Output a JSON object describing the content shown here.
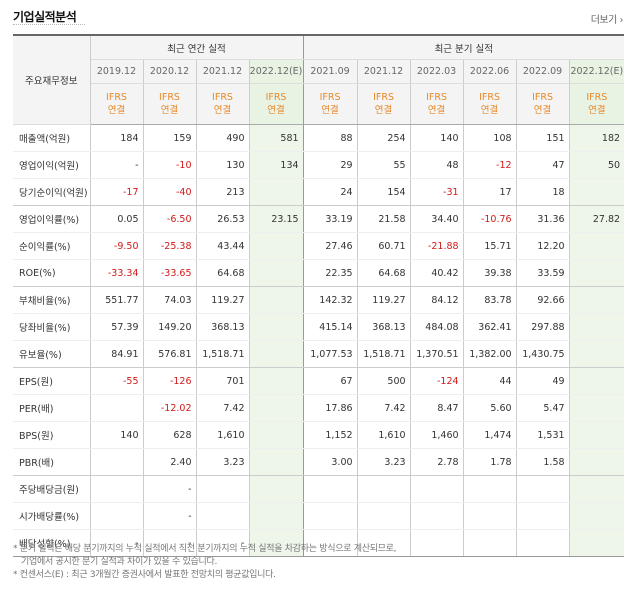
{
  "section_title": "기업실적분석",
  "more_link": "더보기",
  "header": {
    "row_label": "주요재무정보",
    "group_annual": "최근 연간 실적",
    "group_quarter": "최근 분기 실적",
    "annual_periods": [
      "2019.12",
      "2020.12",
      "2021.12",
      "2022.12(E)"
    ],
    "quarter_periods": [
      "2021.09",
      "2021.12",
      "2022.03",
      "2022.06",
      "2022.09",
      "2022.12(E)"
    ],
    "accounting_line1": "IFRS",
    "accounting_line2": "연결"
  },
  "rows": [
    {
      "label": "매출액(억원)",
      "annual": [
        "184",
        "159",
        "490",
        "581"
      ],
      "quarter": [
        "88",
        "254",
        "140",
        "108",
        "151",
        "182"
      ]
    },
    {
      "label": "영업이익(억원)",
      "annual": [
        "-",
        "-10",
        "130",
        "134"
      ],
      "quarter": [
        "29",
        "55",
        "48",
        "-12",
        "47",
        "50"
      ]
    },
    {
      "label": "당기순이익(억원)",
      "annual": [
        "-17",
        "-40",
        "213",
        ""
      ],
      "quarter": [
        "24",
        "154",
        "-31",
        "17",
        "18",
        ""
      ]
    },
    {
      "label": "영업이익률(%)",
      "annual": [
        "0.05",
        "-6.50",
        "26.53",
        "23.15"
      ],
      "quarter": [
        "33.19",
        "21.58",
        "34.40",
        "-10.76",
        "31.36",
        "27.82"
      ]
    },
    {
      "label": "순이익률(%)",
      "annual": [
        "-9.50",
        "-25.38",
        "43.44",
        ""
      ],
      "quarter": [
        "27.46",
        "60.71",
        "-21.88",
        "15.71",
        "12.20",
        ""
      ]
    },
    {
      "label": "ROE(%)",
      "annual": [
        "-33.34",
        "-33.65",
        "64.68",
        ""
      ],
      "quarter": [
        "22.35",
        "64.68",
        "40.42",
        "39.38",
        "33.59",
        ""
      ]
    },
    {
      "label": "부채비율(%)",
      "annual": [
        "551.77",
        "74.03",
        "119.27",
        ""
      ],
      "quarter": [
        "142.32",
        "119.27",
        "84.12",
        "83.78",
        "92.66",
        ""
      ]
    },
    {
      "label": "당좌비율(%)",
      "annual": [
        "57.39",
        "149.20",
        "368.13",
        ""
      ],
      "quarter": [
        "415.14",
        "368.13",
        "484.08",
        "362.41",
        "297.88",
        ""
      ]
    },
    {
      "label": "유보율(%)",
      "annual": [
        "84.91",
        "576.81",
        "1,518.71",
        ""
      ],
      "quarter": [
        "1,077.53",
        "1,518.71",
        "1,370.51",
        "1,382.00",
        "1,430.75",
        ""
      ]
    },
    {
      "label": "EPS(원)",
      "annual": [
        "-55",
        "-126",
        "701",
        ""
      ],
      "quarter": [
        "67",
        "500",
        "-124",
        "44",
        "49",
        ""
      ]
    },
    {
      "label": "PER(배)",
      "annual": [
        "",
        "-12.02",
        "7.42",
        ""
      ],
      "quarter": [
        "17.86",
        "7.42",
        "8.47",
        "5.60",
        "5.47",
        ""
      ]
    },
    {
      "label": "BPS(원)",
      "annual": [
        "140",
        "628",
        "1,610",
        ""
      ],
      "quarter": [
        "1,152",
        "1,610",
        "1,460",
        "1,474",
        "1,531",
        ""
      ]
    },
    {
      "label": "PBR(배)",
      "annual": [
        "",
        "2.40",
        "3.23",
        ""
      ],
      "quarter": [
        "3.00",
        "3.23",
        "2.78",
        "1.78",
        "1.58",
        ""
      ]
    },
    {
      "label": "주당배당금(원)",
      "annual": [
        "",
        "-",
        "",
        ""
      ],
      "quarter": [
        "",
        "",
        "",
        "",
        "",
        ""
      ]
    },
    {
      "label": "시가배당률(%)",
      "annual": [
        "",
        "-",
        "",
        ""
      ],
      "quarter": [
        "",
        "",
        "",
        "",
        "",
        ""
      ]
    },
    {
      "label": "배당성향(%)",
      "annual": [
        "-",
        "-",
        "-",
        ""
      ],
      "quarter": [
        "",
        "",
        "",
        "",
        "",
        ""
      ]
    }
  ],
  "notes": {
    "line1": "* 분기 실적은 해당 분기까지의 누적 실적에서 직전 분기까지의 누적 실적을 차감하는 방식으로 계산되므로,",
    "line2": "기업에서 공시한 분기 실적과 차이가 있을 수 있습니다.",
    "line3": "* 컨센서스(E) : 최근 3개월간 증권사에서 발표한 전망치의 평균값입니다."
  }
}
